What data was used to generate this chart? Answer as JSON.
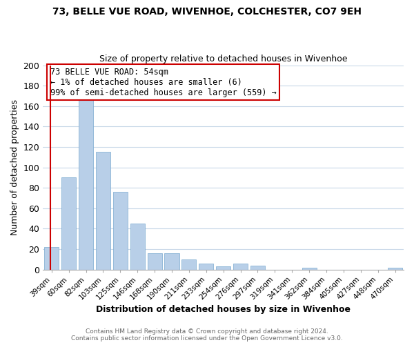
{
  "title": "73, BELLE VUE ROAD, WIVENHOE, COLCHESTER, CO7 9EH",
  "subtitle": "Size of property relative to detached houses in Wivenhoe",
  "xlabel": "Distribution of detached houses by size in Wivenhoe",
  "ylabel": "Number of detached properties",
  "bar_labels": [
    "39sqm",
    "60sqm",
    "82sqm",
    "103sqm",
    "125sqm",
    "146sqm",
    "168sqm",
    "190sqm",
    "211sqm",
    "233sqm",
    "254sqm",
    "276sqm",
    "297sqm",
    "319sqm",
    "341sqm",
    "362sqm",
    "384sqm",
    "405sqm",
    "427sqm",
    "448sqm",
    "470sqm"
  ],
  "bar_values": [
    22,
    90,
    167,
    115,
    76,
    45,
    16,
    16,
    10,
    6,
    3,
    6,
    4,
    0,
    0,
    2,
    0,
    0,
    0,
    0,
    2
  ],
  "bar_color": "#b8cfe8",
  "bar_edge_color": "#7aaad0",
  "highlight_color": "#cc0000",
  "ylim": [
    0,
    200
  ],
  "yticks": [
    0,
    20,
    40,
    60,
    80,
    100,
    120,
    140,
    160,
    180,
    200
  ],
  "annotation_title": "73 BELLE VUE ROAD: 54sqm",
  "annotation_line1": "← 1% of detached houses are smaller (6)",
  "annotation_line2": "99% of semi-detached houses are larger (559) →",
  "annotation_box_color": "#ffffff",
  "annotation_border_color": "#cc0000",
  "footer_line1": "Contains HM Land Registry data © Crown copyright and database right 2024.",
  "footer_line2": "Contains public sector information licensed under the Open Government Licence v3.0.",
  "background_color": "#ffffff",
  "grid_color": "#c8d8e8"
}
